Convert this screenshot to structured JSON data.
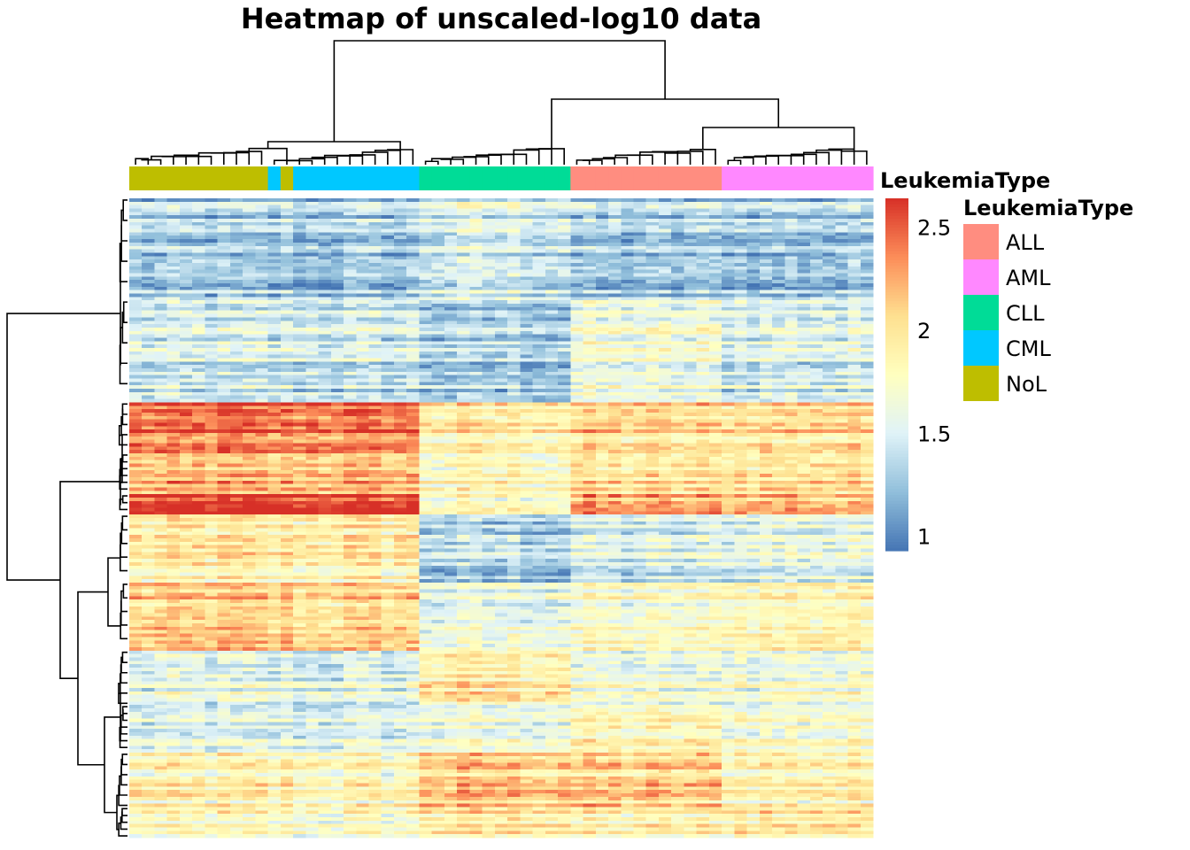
{
  "chart_data": {
    "type": "heatmap",
    "title": "Heatmap of unscaled-log10 data",
    "row_clustered": true,
    "column_clustered": true,
    "column_annotation": {
      "name": "LeukemiaType",
      "order": [
        "NoL",
        "NoL",
        "NoL",
        "NoL",
        "NoL",
        "NoL",
        "NoL",
        "NoL",
        "NoL",
        "NoL",
        "NoL",
        "CML",
        "NoL",
        "CML",
        "CML",
        "CML",
        "CML",
        "CML",
        "CML",
        "CML",
        "CML",
        "CML",
        "CML",
        "CLL",
        "CLL",
        "CLL",
        "CLL",
        "CLL",
        "CLL",
        "CLL",
        "CLL",
        "CLL",
        "CLL",
        "CLL",
        "CLL",
        "ALL",
        "ALL",
        "ALL",
        "ALL",
        "ALL",
        "ALL",
        "ALL",
        "ALL",
        "ALL",
        "ALL",
        "ALL",
        "ALL",
        "AML",
        "AML",
        "AML",
        "AML",
        "AML",
        "AML",
        "AML",
        "AML",
        "AML",
        "AML",
        "AML",
        "AML"
      ]
    },
    "colorbar": {
      "title": "LeukemiaType",
      "ticks": [
        1,
        1.5,
        2,
        2.5
      ],
      "tick_labels": [
        "1",
        "1.5",
        "2",
        "2.5"
      ],
      "range": [
        0.93,
        2.64
      ],
      "colors": [
        "#4575b4",
        "#91bfdb",
        "#e0f3f8",
        "#ffffbf",
        "#fee090",
        "#fc8d59",
        "#d73027"
      ]
    },
    "legend": {
      "title": "LeukemiaType",
      "placement": "right",
      "entries": [
        {
          "label": "ALL",
          "color": "#ff8d80"
        },
        {
          "label": "AML",
          "color": "#ff88ff"
        },
        {
          "label": "CLL",
          "color": "#00dc97"
        },
        {
          "label": "CML",
          "color": "#00c8ff"
        },
        {
          "label": "NoL",
          "color": "#bebe00"
        }
      ]
    },
    "row_blocks": [
      {
        "rows": 30,
        "NoL": 1.3,
        "CML": 1.3,
        "CLL": 1.5,
        "ALL": 1.3,
        "AML": 1.3
      },
      {
        "rows": 30,
        "NoL": 1.42,
        "CML": 1.42,
        "CLL": 1.28,
        "ALL": 1.6,
        "AML": 1.48
      },
      {
        "rows": 15,
        "NoL": 2.42,
        "CML": 2.42,
        "CLL": 1.95,
        "ALL": 2.05,
        "AML": 2.05
      },
      {
        "rows": 12,
        "NoL": 2.18,
        "CML": 2.18,
        "CLL": 1.82,
        "ALL": 1.98,
        "AML": 2.02
      },
      {
        "rows": 6,
        "NoL": 2.55,
        "CML": 2.55,
        "CLL": 1.72,
        "ALL": 2.2,
        "AML": 2.15
      },
      {
        "rows": 20,
        "NoL": 1.92,
        "CML": 1.92,
        "CLL": 1.35,
        "ALL": 1.48,
        "AML": 1.58
      },
      {
        "rows": 20,
        "NoL": 2.1,
        "CML": 2.05,
        "CLL": 1.6,
        "ALL": 1.72,
        "AML": 1.85
      },
      {
        "rows": 16,
        "NoL": 1.55,
        "CML": 1.52,
        "CLL": 1.95,
        "ALL": 1.62,
        "AML": 1.68
      },
      {
        "rows": 14,
        "NoL": 1.5,
        "CML": 1.5,
        "CLL": 1.62,
        "ALL": 1.8,
        "AML": 1.7
      },
      {
        "rows": 16,
        "NoL": 1.85,
        "CML": 1.78,
        "CLL": 2.1,
        "ALL": 2.05,
        "AML": 1.85
      },
      {
        "rows": 9,
        "NoL": 1.78,
        "CML": 1.72,
        "CLL": 1.95,
        "ALL": 1.85,
        "AML": 1.95
      }
    ]
  }
}
